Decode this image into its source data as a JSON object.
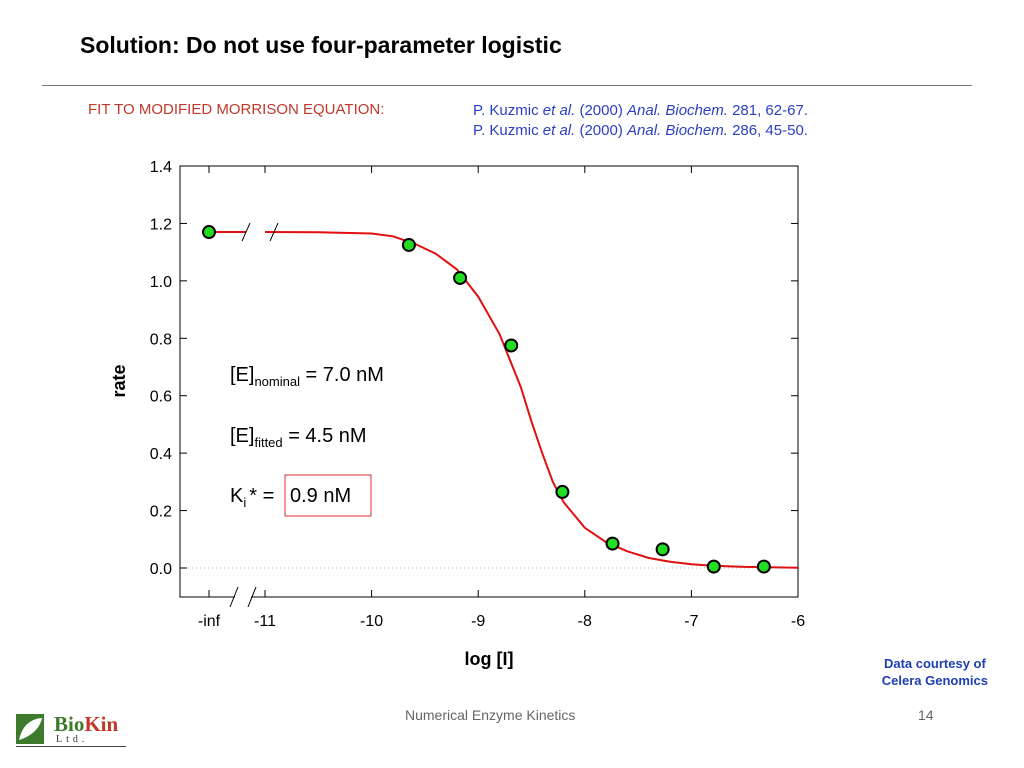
{
  "slide": {
    "title": "Solution: Do not use four-parameter logistic",
    "fit_label": "FIT TO MODIFIED MORRISON EQUATION:",
    "references": [
      {
        "author": "P. Kuzmic",
        "etal": "et al.",
        "year": "(2000)",
        "journal": "Anal. Biochem.",
        "cite": "281, 62-67."
      },
      {
        "author": "P. Kuzmic",
        "etal": "et al.",
        "year": "(2000)",
        "journal": "Anal. Biochem.",
        "cite": "286, 45-50."
      }
    ],
    "courtesy_line1": "Data courtesy of",
    "courtesy_line2": "Celera Genomics",
    "footer_text": "Numerical Enzyme Kinetics",
    "page_number": "14",
    "logo": {
      "bio": "Bio",
      "kin": "Kin",
      "ltd": "Ltd."
    }
  },
  "chart_data": {
    "type": "scatter",
    "xlabel": "log [I]",
    "ylabel": "rate",
    "x_tick_labels": [
      "-inf",
      "-11",
      "-10",
      "-9",
      "-8",
      "-7",
      "-6"
    ],
    "y_tick_labels": [
      "0.0",
      "0.2",
      "0.4",
      "0.6",
      "0.8",
      "1.0",
      "1.2",
      "1.4"
    ],
    "xlim": [
      -11,
      -6
    ],
    "ylim": [
      0.0,
      1.4
    ],
    "axis_break": true,
    "inf_point": {
      "x": "-inf",
      "y": 1.17
    },
    "series": [
      {
        "type": "scatter",
        "x": [
          -9.65,
          -9.17,
          -8.69,
          -8.21,
          -7.74,
          -7.27,
          -6.79,
          -6.32
        ],
        "y": [
          1.125,
          1.01,
          0.775,
          0.265,
          0.085,
          0.065,
          0.005,
          0.005
        ]
      },
      {
        "type": "line",
        "x": [
          -11.0,
          -10.5,
          -10.0,
          -9.8,
          -9.6,
          -9.4,
          -9.2,
          -9.0,
          -8.8,
          -8.6,
          -8.5,
          -8.4,
          -8.3,
          -8.2,
          -8.0,
          -7.8,
          -7.6,
          -7.4,
          -7.2,
          -7.0,
          -6.8,
          -6.5,
          -6.0
        ],
        "y": [
          1.17,
          1.169,
          1.165,
          1.155,
          1.13,
          1.095,
          1.04,
          0.945,
          0.815,
          0.63,
          0.51,
          0.4,
          0.3,
          0.23,
          0.14,
          0.09,
          0.058,
          0.035,
          0.022,
          0.013,
          0.008,
          0.004,
          0.001
        ]
      }
    ],
    "annotations": {
      "e_nominal_label": "[E]",
      "e_nominal_sub": "nominal",
      "e_nominal_value": " = 7.0 nM",
      "e_fitted_label": "[E]",
      "e_fitted_sub": "fitted",
      "e_fitted_value": " = 4.5 nM",
      "ki_label": "K",
      "ki_sub": "i",
      "ki_eq": "* =",
      "ki_value": "0.9 nM"
    },
    "colors": {
      "curve": "#e01010",
      "point_fill": "#22dd22",
      "point_stroke": "#000000",
      "highlight_box": "#e03030"
    }
  }
}
